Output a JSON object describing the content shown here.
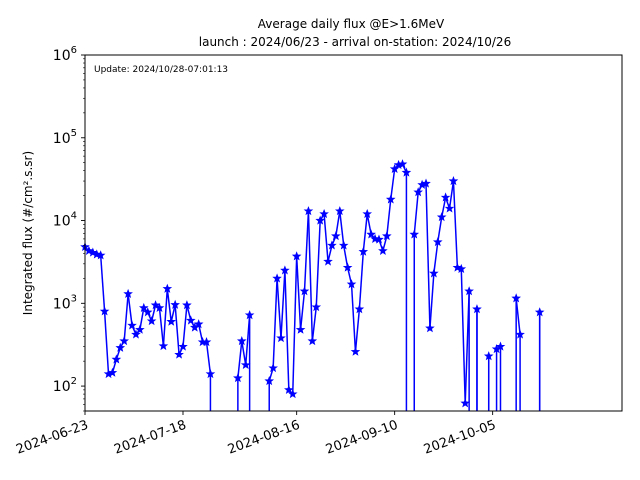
{
  "chart_data": {
    "type": "line",
    "title": "Average daily flux @E>1.6MeV",
    "subtitle": "launch : 2024/06/23 - arrival on-station: 2024/10/26",
    "annotation": "Update: 2024/10/28-07:01:13",
    "ylabel": "Integrated flux (#/cm².s.sr)",
    "xlabel": "",
    "yscale": "log",
    "ylim": [
      50,
      1000000
    ],
    "xlim": [
      "2024-06-23",
      "2024-11-07"
    ],
    "x_ticks": [
      "2024-06-23",
      "2024-07-18",
      "2024-08-16",
      "2024-09-10",
      "2024-10-05"
    ],
    "y_ticks": [
      {
        "value": 100,
        "base": "10",
        "exp": "2"
      },
      {
        "value": 1000,
        "base": "10",
        "exp": "3"
      },
      {
        "value": 10000,
        "base": "10",
        "exp": "4"
      },
      {
        "value": 100000,
        "base": "10",
        "exp": "5"
      },
      {
        "value": 1000000,
        "base": "10",
        "exp": "6"
      }
    ],
    "grid": false,
    "marker": "star",
    "color": "#0000ff",
    "series": [
      {
        "name": "",
        "points": [
          {
            "x": "2024-06-23",
            "y": 4800
          },
          {
            "x": "2024-06-24",
            "y": 4300
          },
          {
            "x": "2024-06-25",
            "y": 4100
          },
          {
            "x": "2024-06-26",
            "y": 3900
          },
          {
            "x": "2024-06-27",
            "y": 3800
          },
          {
            "x": "2024-06-28",
            "y": 800
          },
          {
            "x": "2024-06-29",
            "y": 140
          },
          {
            "x": "2024-06-30",
            "y": 145
          },
          {
            "x": "2024-07-01",
            "y": 210
          },
          {
            "x": "2024-07-02",
            "y": 290
          },
          {
            "x": "2024-07-03",
            "y": 350
          },
          {
            "x": "2024-07-04",
            "y": 1300
          },
          {
            "x": "2024-07-05",
            "y": 540
          },
          {
            "x": "2024-07-06",
            "y": 420
          },
          {
            "x": "2024-07-07",
            "y": 480
          },
          {
            "x": "2024-07-08",
            "y": 880
          },
          {
            "x": "2024-07-09",
            "y": 780
          },
          {
            "x": "2024-07-10",
            "y": 610
          },
          {
            "x": "2024-07-11",
            "y": 950
          },
          {
            "x": "2024-07-12",
            "y": 880
          },
          {
            "x": "2024-07-13",
            "y": 305
          },
          {
            "x": "2024-07-14",
            "y": 1500
          },
          {
            "x": "2024-07-15",
            "y": 600
          },
          {
            "x": "2024-07-16",
            "y": 960
          },
          {
            "x": "2024-07-17",
            "y": 240
          },
          {
            "x": "2024-07-18",
            "y": 300
          },
          {
            "x": "2024-07-19",
            "y": 950
          },
          {
            "x": "2024-07-20",
            "y": 620
          },
          {
            "x": "2024-07-21",
            "y": 510
          },
          {
            "x": "2024-07-22",
            "y": 560
          },
          {
            "x": "2024-07-23",
            "y": 340
          },
          {
            "x": "2024-07-24",
            "y": 340
          },
          {
            "x": "2024-07-25",
            "y": 140
          },
          {
            "x": "2024-07-26",
            "y": null
          },
          {
            "x": "2024-07-27",
            "y": null
          },
          {
            "x": "2024-07-28",
            "y": null
          },
          {
            "x": "2024-07-29",
            "y": null
          },
          {
            "x": "2024-07-30",
            "y": null
          },
          {
            "x": "2024-07-31",
            "y": null
          },
          {
            "x": "2024-08-01",
            "y": 125
          },
          {
            "x": "2024-08-02",
            "y": 350
          },
          {
            "x": "2024-08-03",
            "y": 180
          },
          {
            "x": "2024-08-04",
            "y": 720
          },
          {
            "x": "2024-08-05",
            "y": null
          },
          {
            "x": "2024-08-06",
            "y": null
          },
          {
            "x": "2024-08-07",
            "y": null
          },
          {
            "x": "2024-08-08",
            "y": null
          },
          {
            "x": "2024-08-09",
            "y": 115
          },
          {
            "x": "2024-08-10",
            "y": 165
          },
          {
            "x": "2024-08-11",
            "y": 2000
          },
          {
            "x": "2024-08-12",
            "y": 380
          },
          {
            "x": "2024-08-13",
            "y": 2500
          },
          {
            "x": "2024-08-14",
            "y": 90
          },
          {
            "x": "2024-08-15",
            "y": 80
          },
          {
            "x": "2024-08-16",
            "y": 3700
          },
          {
            "x": "2024-08-17",
            "y": 480
          },
          {
            "x": "2024-08-18",
            "y": 1400
          },
          {
            "x": "2024-08-19",
            "y": 13000
          },
          {
            "x": "2024-08-20",
            "y": 350
          },
          {
            "x": "2024-08-21",
            "y": 900
          },
          {
            "x": "2024-08-22",
            "y": 10000
          },
          {
            "x": "2024-08-23",
            "y": 12000
          },
          {
            "x": "2024-08-24",
            "y": 3200
          },
          {
            "x": "2024-08-25",
            "y": 5000
          },
          {
            "x": "2024-08-26",
            "y": 6500
          },
          {
            "x": "2024-08-27",
            "y": 13000
          },
          {
            "x": "2024-08-28",
            "y": 5000
          },
          {
            "x": "2024-08-29",
            "y": 2700
          },
          {
            "x": "2024-08-30",
            "y": 1700
          },
          {
            "x": "2024-08-31",
            "y": 260
          },
          {
            "x": "2024-09-01",
            "y": 850
          },
          {
            "x": "2024-09-02",
            "y": 4200
          },
          {
            "x": "2024-09-03",
            "y": 12000
          },
          {
            "x": "2024-09-04",
            "y": 6800
          },
          {
            "x": "2024-09-05",
            "y": 6000
          },
          {
            "x": "2024-09-06",
            "y": 5900
          },
          {
            "x": "2024-09-07",
            "y": 4300
          },
          {
            "x": "2024-09-08",
            "y": 6500
          },
          {
            "x": "2024-09-09",
            "y": 18000
          },
          {
            "x": "2024-09-10",
            "y": 42000
          },
          {
            "x": "2024-09-11",
            "y": 47000
          },
          {
            "x": "2024-09-12",
            "y": 48000
          },
          {
            "x": "2024-09-13",
            "y": 38000
          },
          {
            "x": "2024-09-14",
            "y": null
          },
          {
            "x": "2024-09-15",
            "y": 6800
          },
          {
            "x": "2024-09-16",
            "y": 22000
          },
          {
            "x": "2024-09-17",
            "y": 27000
          },
          {
            "x": "2024-09-18",
            "y": 28000
          },
          {
            "x": "2024-09-19",
            "y": 500
          },
          {
            "x": "2024-09-20",
            "y": 2300
          },
          {
            "x": "2024-09-21",
            "y": 5500
          },
          {
            "x": "2024-09-22",
            "y": 11000
          },
          {
            "x": "2024-09-23",
            "y": 19000
          },
          {
            "x": "2024-09-24",
            "y": 14000
          },
          {
            "x": "2024-09-25",
            "y": 30000
          },
          {
            "x": "2024-09-26",
            "y": 2700
          },
          {
            "x": "2024-09-27",
            "y": 2600
          },
          {
            "x": "2024-09-28",
            "y": 62
          },
          {
            "x": "2024-09-29",
            "y": 1400
          },
          {
            "x": "2024-09-30",
            "y": null
          },
          {
            "x": "2024-10-01",
            "y": 850
          },
          {
            "x": "2024-10-02",
            "y": null
          },
          {
            "x": "2024-10-03",
            "y": null
          },
          {
            "x": "2024-10-04",
            "y": 230
          },
          {
            "x": "2024-10-05",
            "y": null
          },
          {
            "x": "2024-10-06",
            "y": 280
          },
          {
            "x": "2024-10-07",
            "y": 300
          },
          {
            "x": "2024-10-08",
            "y": null
          },
          {
            "x": "2024-10-09",
            "y": null
          },
          {
            "x": "2024-10-10",
            "y": null
          },
          {
            "x": "2024-10-11",
            "y": 1150
          },
          {
            "x": "2024-10-12",
            "y": 420
          },
          {
            "x": "2024-10-13",
            "y": null
          },
          {
            "x": "2024-10-14",
            "y": null
          },
          {
            "x": "2024-10-15",
            "y": null
          },
          {
            "x": "2024-10-16",
            "y": null
          },
          {
            "x": "2024-10-17",
            "y": 780
          },
          {
            "x": "2024-10-18",
            "y": null
          }
        ]
      }
    ]
  }
}
